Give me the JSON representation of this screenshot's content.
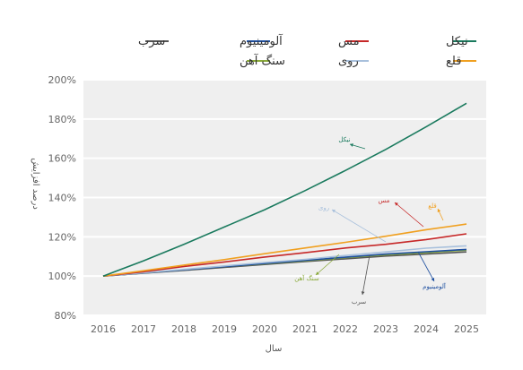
{
  "chart_data": {
    "type": "line",
    "xlabel": "سال",
    "ylabel": "درصد افزایش",
    "x": [
      2016,
      2017,
      2018,
      2019,
      2020,
      2021,
      2022,
      2023,
      2024,
      2025
    ],
    "ylim": [
      80,
      200
    ],
    "yticks": [
      "80%",
      "100%",
      "120%",
      "140%",
      "160%",
      "180%",
      "200%"
    ],
    "grid": true,
    "legend_position": "top",
    "series": [
      {
        "name": "نیکل",
        "color": "#1a7a5e",
        "values": [
          100,
          107.8,
          116.2,
          125.0,
          133.8,
          143.5,
          153.8,
          164.5,
          176.0,
          188.0
        ]
      },
      {
        "name": "مس",
        "color": "#c62828",
        "values": [
          100,
          102.2,
          104.9,
          107.2,
          109.7,
          111.9,
          114.3,
          116.2,
          118.6,
          121.5
        ]
      },
      {
        "name": "سرب",
        "color": "#555555",
        "values": [
          100,
          101.5,
          102.9,
          104.4,
          105.9,
          107.4,
          108.8,
          110.2,
          111.2,
          112.3
        ]
      },
      {
        "name": "قلع",
        "color": "#f0a020",
        "values": [
          100,
          102.7,
          105.6,
          108.4,
          111.4,
          114.3,
          117.2,
          120.3,
          123.6,
          126.5
        ]
      },
      {
        "name": "روی",
        "color": "#a8c0dc",
        "values": [
          100,
          101.7,
          103.4,
          105.2,
          106.9,
          108.5,
          110.5,
          112.3,
          114.2,
          115.4
        ]
      },
      {
        "name": "آلومینیوم",
        "color": "#1e4fa0",
        "values": [
          100,
          101.6,
          103.2,
          104.8,
          106.4,
          108.0,
          109.6,
          111.2,
          112.4,
          113.6
        ]
      },
      {
        "name": "سنگ آهن",
        "color": "#8aaa3a",
        "values": [
          100,
          101.6,
          103.2,
          104.8,
          106.3,
          107.8,
          109.4,
          110.8,
          112.0,
          113.2
        ]
      }
    ]
  }
}
